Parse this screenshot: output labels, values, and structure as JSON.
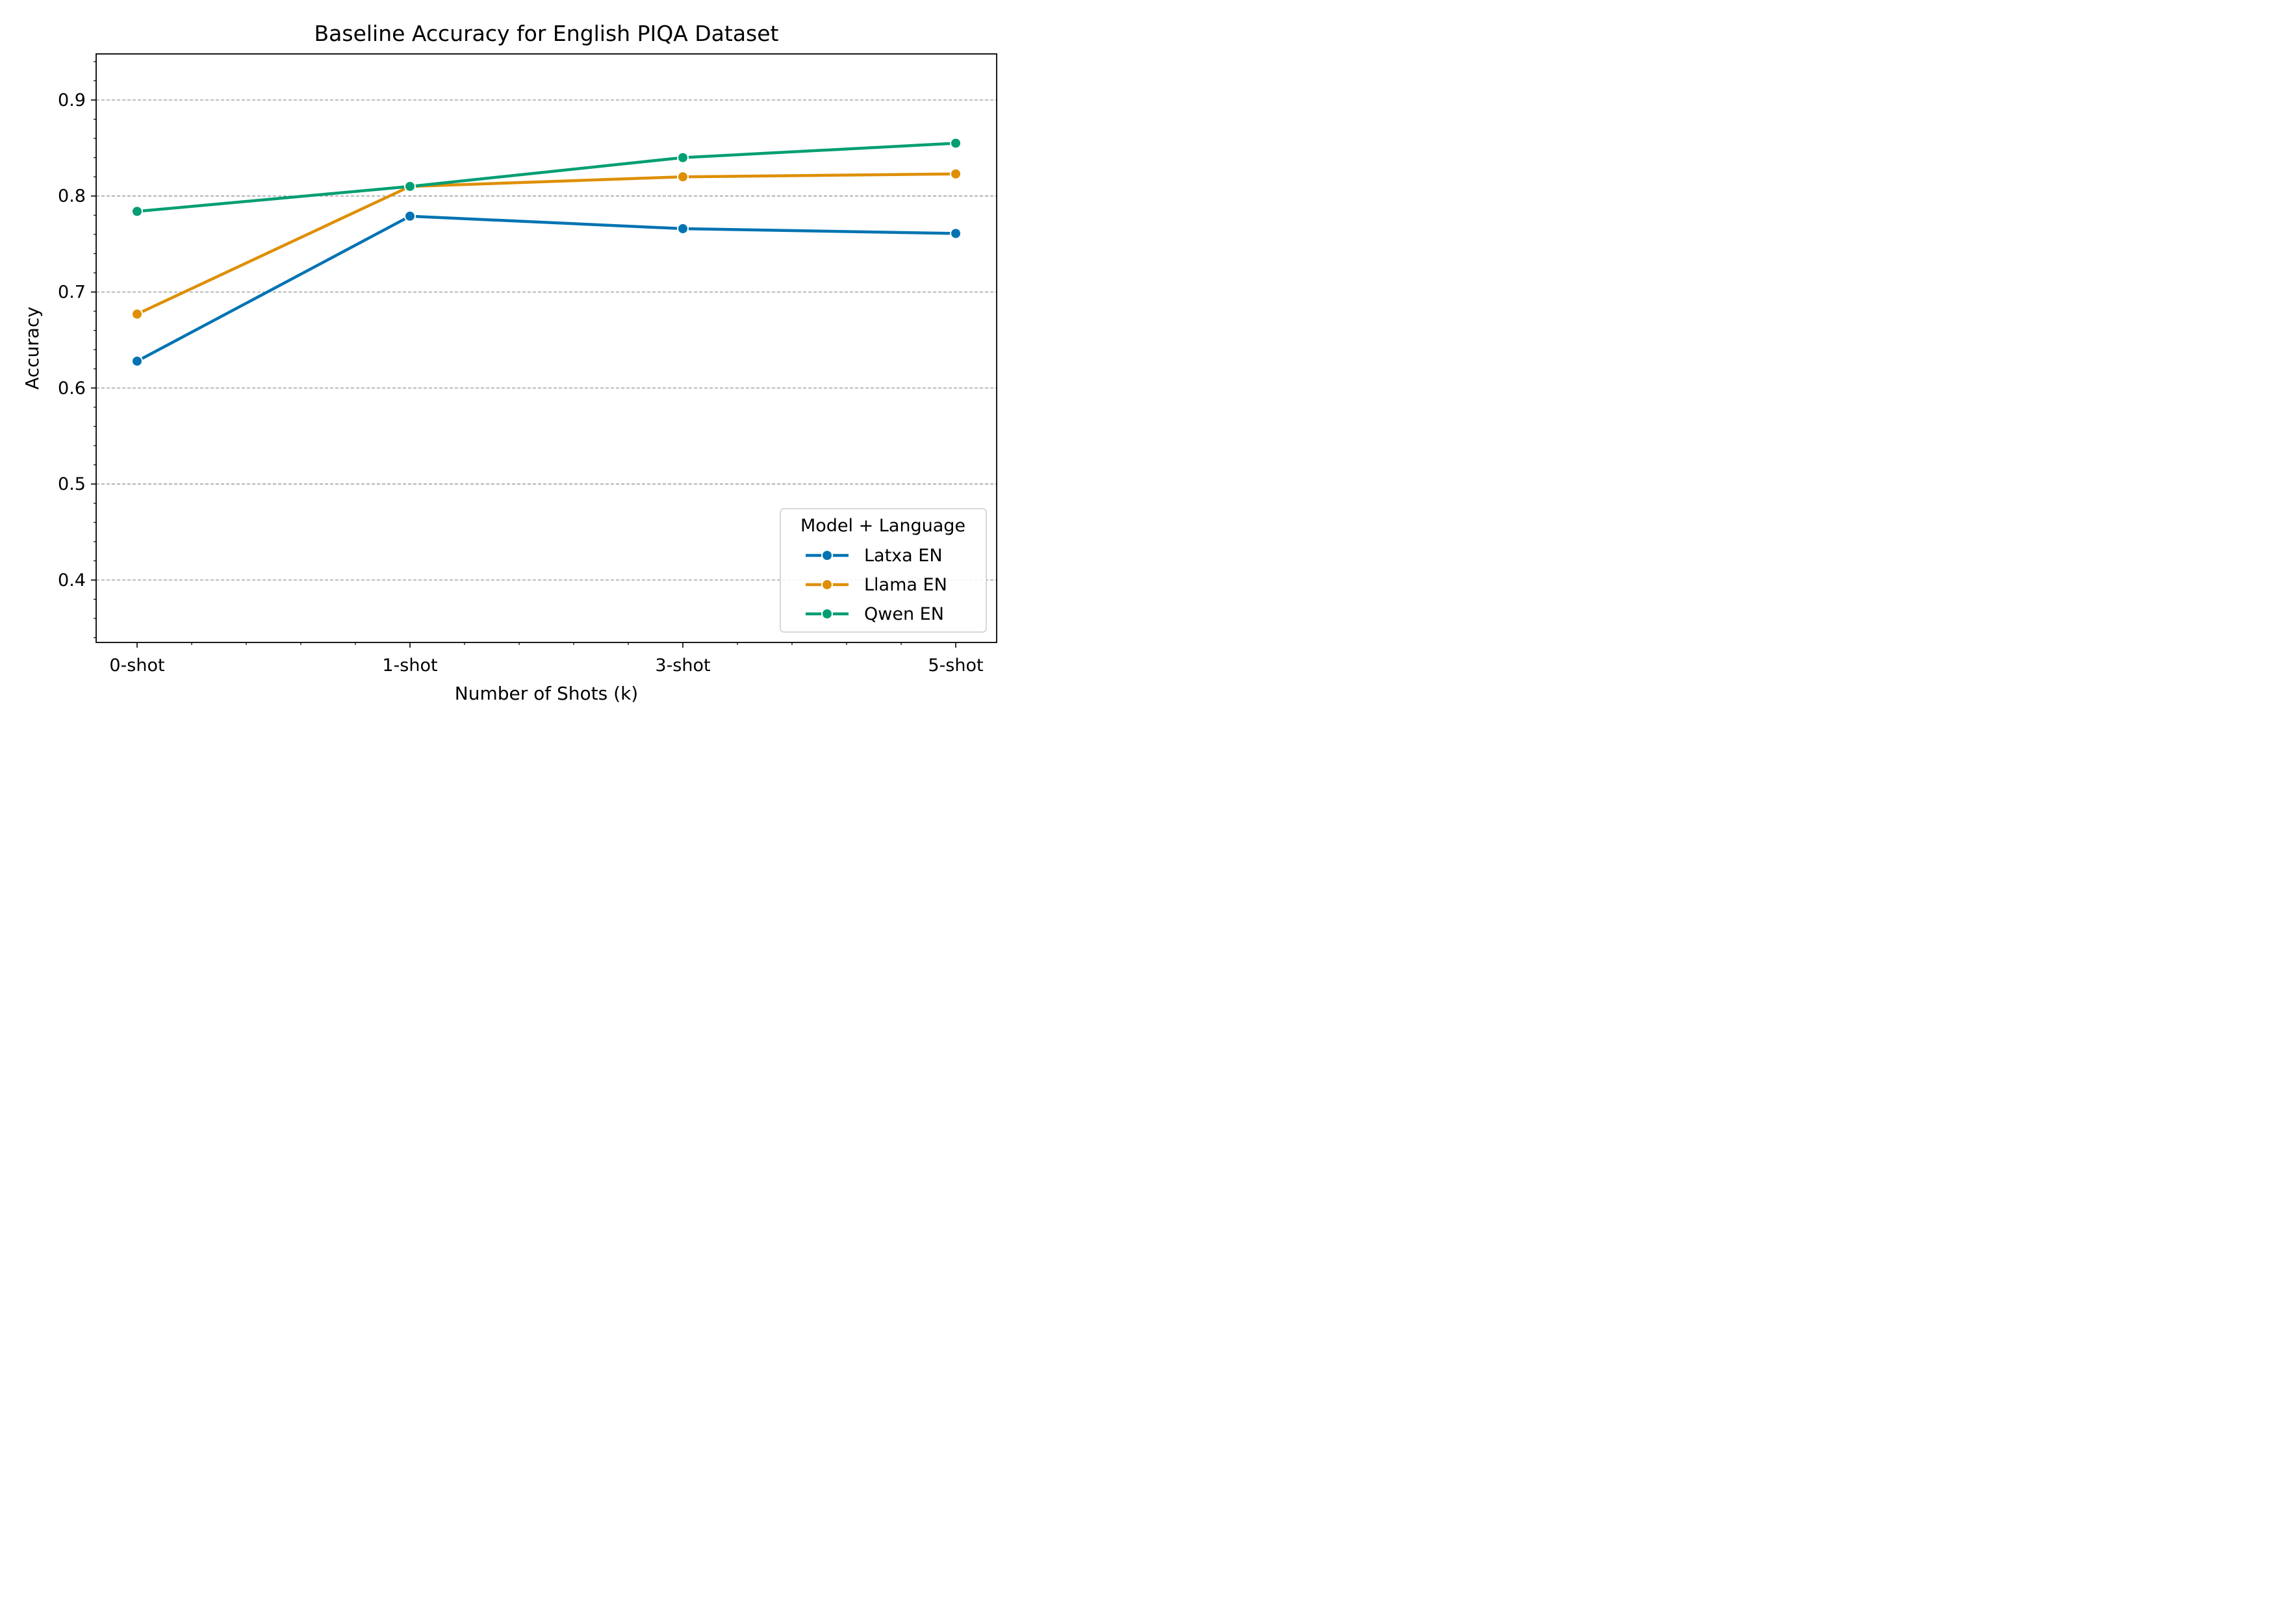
{
  "chart_data": {
    "type": "line",
    "title": "Baseline Accuracy for English PIQA Dataset",
    "xlabel": "Number of Shots (k)",
    "ylabel": "Accuracy",
    "categories": [
      "0-shot",
      "1-shot",
      "3-shot",
      "5-shot"
    ],
    "ylim": [
      0.335,
      0.948
    ],
    "yticks": [
      0.4,
      0.5,
      0.6,
      0.7,
      0.8,
      0.9
    ],
    "ytick_labels": [
      "0.4",
      "0.5",
      "0.6",
      "0.7",
      "0.8",
      "0.9"
    ],
    "grid": "horizontal dashed at major y ticks",
    "legend": {
      "title": "Model + Language",
      "placement": "lower-right"
    },
    "series": [
      {
        "name": "Latxa EN",
        "color": "#0173b2",
        "values": [
          0.628,
          0.779,
          0.766,
          0.761
        ]
      },
      {
        "name": "Llama EN",
        "color": "#de8f05",
        "values": [
          0.677,
          0.81,
          0.82,
          0.823
        ]
      },
      {
        "name": "Qwen EN",
        "color": "#029e73",
        "values": [
          0.784,
          0.81,
          0.84,
          0.855
        ]
      }
    ]
  }
}
